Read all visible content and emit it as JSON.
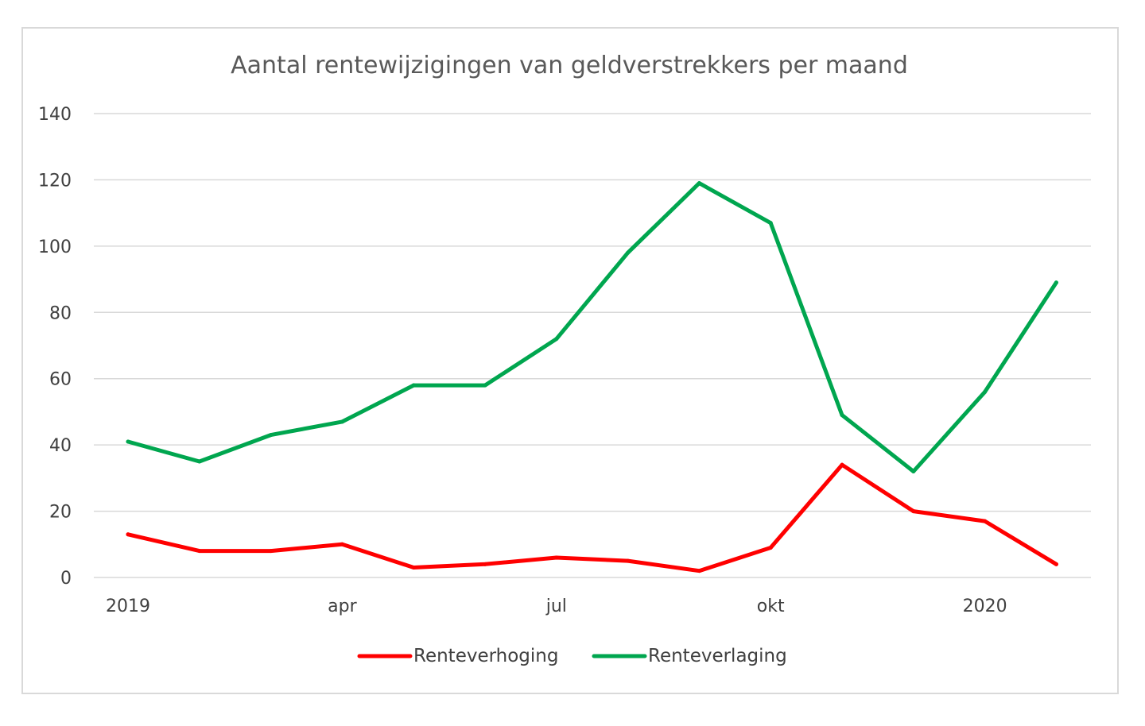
{
  "chart_data": {
    "type": "line",
    "title": "Aantal rentewijzigingen van geldverstrekkers per maand",
    "xlabel": "",
    "ylabel": "",
    "ylim": [
      0,
      140
    ],
    "yticks": [
      0,
      20,
      40,
      60,
      80,
      100,
      120,
      140
    ],
    "x": [
      "2019-01",
      "2019-02",
      "2019-03",
      "2019-04",
      "2019-05",
      "2019-06",
      "2019-07",
      "2019-08",
      "2019-09",
      "2019-10",
      "2019-11",
      "2019-12",
      "2020-01",
      "2020-02"
    ],
    "xtick_labels": [
      {
        "x": "2019-01",
        "label": "2019"
      },
      {
        "x": "2019-04",
        "label": "apr"
      },
      {
        "x": "2019-07",
        "label": "jul"
      },
      {
        "x": "2019-10",
        "label": "okt"
      },
      {
        "x": "2020-01",
        "label": "2020"
      }
    ],
    "series": [
      {
        "name": "Renteverhoging",
        "color": "#ff0000",
        "values": [
          13,
          8,
          8,
          10,
          3,
          4,
          6,
          5,
          2,
          9,
          34,
          20,
          17,
          4
        ]
      },
      {
        "name": "Renteverlaging",
        "color": "#00a64f",
        "values": [
          41,
          35,
          43,
          47,
          58,
          58,
          72,
          98,
          119,
          107,
          49,
          32,
          56,
          89
        ]
      }
    ],
    "grid": true,
    "legend": "bottom"
  }
}
